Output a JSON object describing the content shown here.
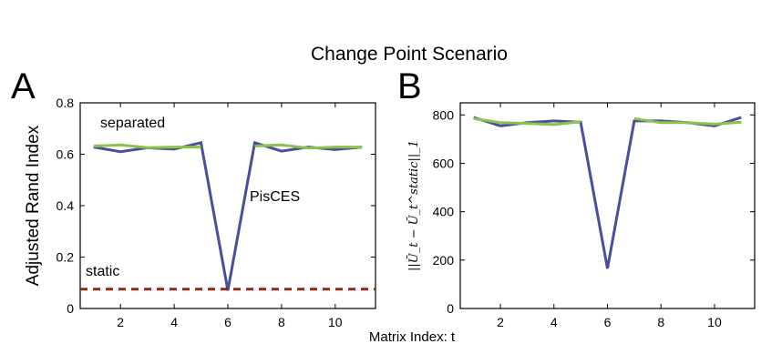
{
  "figure": {
    "title": "Change Point Scenario",
    "xlabel": "Matrix Index: t"
  },
  "chart_data": [
    {
      "type": "line",
      "panel": "A",
      "ylabel": "Adjusted Rand Index",
      "xlim": [
        0.5,
        11.5
      ],
      "ylim": [
        0,
        0.8
      ],
      "xticks": [
        2,
        4,
        6,
        8,
        10
      ],
      "yticks": [
        0,
        0.2,
        0.4,
        0.6,
        0.8
      ],
      "grid": false,
      "annotations": [
        "separated",
        "PisCES",
        "static"
      ],
      "series": [
        {
          "style": "solid",
          "color": "#4a4f9c",
          "segments": [
            {
              "x": [
                1,
                2,
                3,
                4,
                5,
                6,
                7,
                8,
                9,
                10,
                11
              ],
              "y": [
                0.628,
                0.61,
                0.625,
                0.62,
                0.645,
                0.07,
                0.645,
                0.612,
                0.628,
                0.618,
                0.628
              ]
            }
          ]
        },
        {
          "style": "solid",
          "color": "#8cc14a",
          "segments": [
            {
              "x": [
                1,
                2,
                3,
                4,
                5
              ],
              "y": [
                0.632,
                0.636,
                0.626,
                0.628,
                0.628
              ]
            },
            {
              "x": [
                7,
                8,
                9,
                10,
                11
              ],
              "y": [
                0.632,
                0.636,
                0.624,
                0.628,
                0.628
              ]
            }
          ]
        },
        {
          "style": "dashed",
          "color": "#8b2a1c",
          "segments": [
            {
              "x": [
                0.5,
                11.5
              ],
              "y": [
                0.075,
                0.075
              ]
            }
          ]
        }
      ]
    },
    {
      "type": "line",
      "panel": "B",
      "ylabel": "||Ū_t − Ū_t^static||_1",
      "xlim": [
        0.5,
        11.5
      ],
      "ylim": [
        0,
        850
      ],
      "xticks": [
        2,
        4,
        6,
        8,
        10
      ],
      "yticks": [
        0,
        200,
        400,
        600,
        800
      ],
      "grid": false,
      "series": [
        {
          "style": "solid",
          "color": "#4a4f9c",
          "segments": [
            {
              "x": [
                1,
                2,
                3,
                4,
                5,
                6,
                7,
                8,
                9,
                10,
                11
              ],
              "y": [
                790,
                755,
                768,
                775,
                770,
                165,
                775,
                775,
                768,
                755,
                790
              ]
            }
          ]
        },
        {
          "style": "solid",
          "color": "#8cc14a",
          "segments": [
            {
              "x": [
                1,
                2,
                3,
                4,
                5
              ],
              "y": [
                785,
                768,
                765,
                760,
                772
              ]
            },
            {
              "x": [
                7,
                8,
                9,
                10,
                11
              ],
              "y": [
                785,
                768,
                768,
                762,
                770
              ]
            }
          ]
        }
      ]
    }
  ]
}
